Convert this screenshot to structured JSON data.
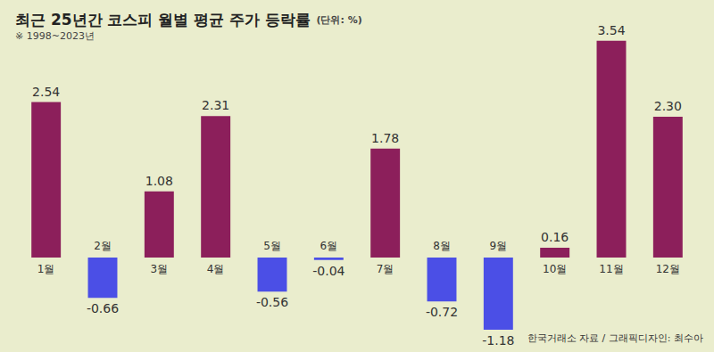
{
  "chart_data": {
    "type": "bar",
    "title": "최근 25년간 코스피 월별 평균 주가 등락률",
    "unit_note": "(단위: %)",
    "subtitle": "※ 1998~2023년",
    "source": "한국거래소 자료 / 그래픽디자인: 최수아",
    "categories": [
      "1월",
      "2월",
      "3월",
      "4월",
      "5월",
      "6월",
      "7월",
      "8월",
      "9월",
      "10월",
      "11월",
      "12월"
    ],
    "values": [
      2.54,
      -0.66,
      1.08,
      2.31,
      -0.56,
      -0.04,
      1.78,
      -0.72,
      -1.18,
      0.16,
      3.54,
      2.3
    ],
    "value_labels": [
      "2.54",
      "-0.66",
      "1.08",
      "2.31",
      "-0.56",
      "-0.04",
      "1.78",
      "-0.72",
      "-1.18",
      "0.16",
      "3.54",
      "2.30"
    ],
    "colors": [
      "#8c1f5b",
      "#4b4fe6",
      "#8c1f5b",
      "#8c1f5b",
      "#4b4fe6",
      "#4b4fe6",
      "#8c1f5b",
      "#4b4fe6",
      "#4b4fe6",
      "#8c1f5b",
      "#8c1f5b",
      "#8c1f5b"
    ],
    "ylim": [
      -1.4,
      3.8
    ],
    "data_labels": true,
    "tick_labels": false,
    "grid": false
  }
}
